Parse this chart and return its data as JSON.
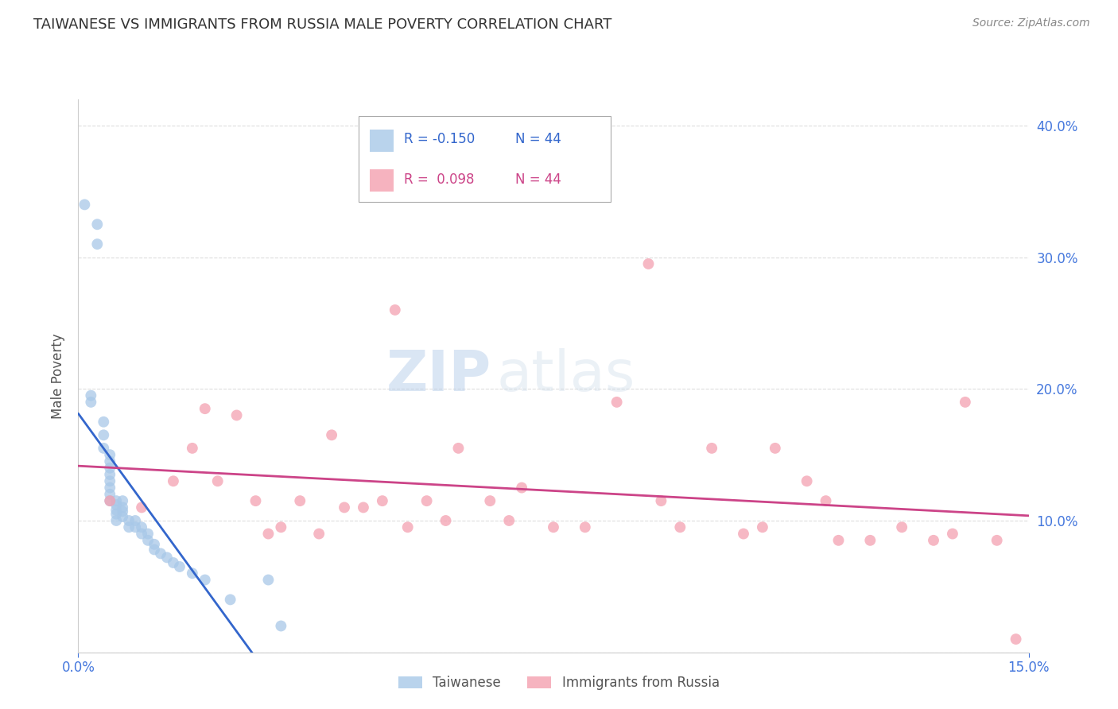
{
  "title": "TAIWANESE VS IMMIGRANTS FROM RUSSIA MALE POVERTY CORRELATION CHART",
  "source": "Source: ZipAtlas.com",
  "ylabel": "Male Poverty",
  "xlim": [
    0.0,
    0.15
  ],
  "ylim": [
    0.0,
    0.42
  ],
  "legend_r_taiwanese": "-0.150",
  "legend_n_taiwanese": "44",
  "legend_r_russia": "0.098",
  "legend_n_russia": "44",
  "taiwanese_color": "#a8c8e8",
  "russia_color": "#f4a0b0",
  "trendline_taiwanese_color": "#3366cc",
  "trendline_russia_color": "#cc4488",
  "trendline_extrap_color": "#bbbbbb",
  "axis_color": "#4477dd",
  "grid_color": "#dddddd",
  "background_color": "#ffffff",
  "taiwanese_x": [
    0.001,
    0.002,
    0.002,
    0.003,
    0.003,
    0.004,
    0.004,
    0.004,
    0.005,
    0.005,
    0.005,
    0.005,
    0.005,
    0.005,
    0.005,
    0.005,
    0.006,
    0.006,
    0.006,
    0.006,
    0.006,
    0.007,
    0.007,
    0.007,
    0.007,
    0.008,
    0.008,
    0.009,
    0.009,
    0.01,
    0.01,
    0.011,
    0.011,
    0.012,
    0.012,
    0.013,
    0.014,
    0.015,
    0.016,
    0.018,
    0.02,
    0.024,
    0.03,
    0.032
  ],
  "taiwanese_y": [
    0.34,
    0.195,
    0.19,
    0.325,
    0.31,
    0.175,
    0.165,
    0.155,
    0.15,
    0.145,
    0.14,
    0.135,
    0.13,
    0.125,
    0.12,
    0.115,
    0.115,
    0.112,
    0.108,
    0.105,
    0.1,
    0.115,
    0.11,
    0.107,
    0.103,
    0.1,
    0.095,
    0.1,
    0.095,
    0.095,
    0.09,
    0.09,
    0.085,
    0.082,
    0.078,
    0.075,
    0.072,
    0.068,
    0.065,
    0.06,
    0.055,
    0.04,
    0.055,
    0.02
  ],
  "russia_x": [
    0.005,
    0.01,
    0.015,
    0.018,
    0.02,
    0.022,
    0.025,
    0.028,
    0.03,
    0.032,
    0.035,
    0.038,
    0.04,
    0.042,
    0.045,
    0.048,
    0.05,
    0.052,
    0.055,
    0.058,
    0.06,
    0.065,
    0.068,
    0.07,
    0.075,
    0.08,
    0.085,
    0.09,
    0.092,
    0.095,
    0.1,
    0.105,
    0.108,
    0.11,
    0.115,
    0.118,
    0.12,
    0.125,
    0.13,
    0.135,
    0.138,
    0.14,
    0.145,
    0.148
  ],
  "russia_y": [
    0.115,
    0.11,
    0.13,
    0.155,
    0.185,
    0.13,
    0.18,
    0.115,
    0.09,
    0.095,
    0.115,
    0.09,
    0.165,
    0.11,
    0.11,
    0.115,
    0.26,
    0.095,
    0.115,
    0.1,
    0.155,
    0.115,
    0.1,
    0.125,
    0.095,
    0.095,
    0.19,
    0.295,
    0.115,
    0.095,
    0.155,
    0.09,
    0.095,
    0.155,
    0.13,
    0.115,
    0.085,
    0.085,
    0.095,
    0.085,
    0.09,
    0.19,
    0.085,
    0.01
  ]
}
